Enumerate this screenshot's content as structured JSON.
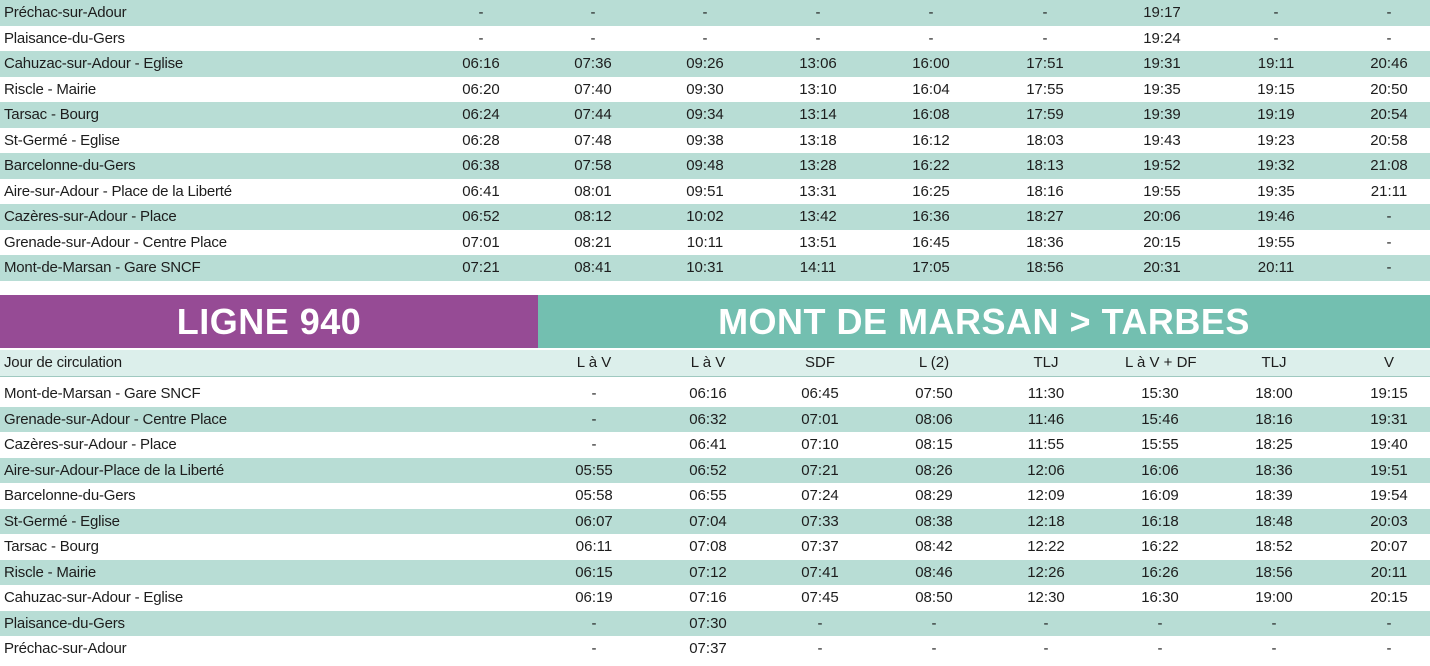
{
  "top_table": {
    "rows": [
      {
        "stop": "Préchac-sur-Adour",
        "times": [
          "-",
          "-",
          "-",
          "-",
          "-",
          "-",
          "19:17",
          "-",
          "-"
        ]
      },
      {
        "stop": "Plaisance-du-Gers",
        "times": [
          "-",
          "-",
          "-",
          "-",
          "-",
          "-",
          "19:24",
          "-",
          "-"
        ]
      },
      {
        "stop": "Cahuzac-sur-Adour - Eglise",
        "times": [
          "06:16",
          "07:36",
          "09:26",
          "13:06",
          "16:00",
          "17:51",
          "19:31",
          "19:11",
          "20:46"
        ]
      },
      {
        "stop": "Riscle - Mairie",
        "times": [
          "06:20",
          "07:40",
          "09:30",
          "13:10",
          "16:04",
          "17:55",
          "19:35",
          "19:15",
          "20:50"
        ]
      },
      {
        "stop": "Tarsac - Bourg",
        "times": [
          "06:24",
          "07:44",
          "09:34",
          "13:14",
          "16:08",
          "17:59",
          "19:39",
          "19:19",
          "20:54"
        ]
      },
      {
        "stop": "St-Germé - Eglise",
        "times": [
          "06:28",
          "07:48",
          "09:38",
          "13:18",
          "16:12",
          "18:03",
          "19:43",
          "19:23",
          "20:58"
        ]
      },
      {
        "stop": "Barcelonne-du-Gers",
        "times": [
          "06:38",
          "07:58",
          "09:48",
          "13:28",
          "16:22",
          "18:13",
          "19:52",
          "19:32",
          "21:08"
        ]
      },
      {
        "stop": "Aire-sur-Adour - Place de la Liberté",
        "times": [
          "06:41",
          "08:01",
          "09:51",
          "13:31",
          "16:25",
          "18:16",
          "19:55",
          "19:35",
          "21:11"
        ]
      },
      {
        "stop": "Cazères-sur-Adour - Place",
        "times": [
          "06:52",
          "08:12",
          "10:02",
          "13:42",
          "16:36",
          "18:27",
          "20:06",
          "19:46",
          "-"
        ]
      },
      {
        "stop": "Grenade-sur-Adour - Centre Place",
        "times": [
          "07:01",
          "08:21",
          "10:11",
          "13:51",
          "16:45",
          "18:36",
          "20:15",
          "19:55",
          "-"
        ]
      },
      {
        "stop": "Mont-de-Marsan - Gare SNCF",
        "times": [
          "07:21",
          "08:41",
          "10:31",
          "14:11",
          "17:05",
          "18:56",
          "20:31",
          "20:11",
          "-"
        ]
      }
    ]
  },
  "banner": {
    "line": "LIGNE 940",
    "route": "MONT DE MARSAN > TARBES"
  },
  "bottom_table": {
    "header_label": "Jour de circulation",
    "days": [
      "L à V",
      "L à V",
      "SDF",
      "L (2)",
      "TLJ",
      "L à V + DF",
      "TLJ",
      "V"
    ],
    "rows": [
      {
        "stop": "Mont-de-Marsan - Gare SNCF",
        "times": [
          "-",
          "06:16",
          "06:45",
          "07:50",
          "11:30",
          "15:30",
          "18:00",
          "19:15"
        ]
      },
      {
        "stop": "Grenade-sur-Adour - Centre Place",
        "times": [
          "-",
          "06:32",
          "07:01",
          "08:06",
          "11:46",
          "15:46",
          "18:16",
          "19:31"
        ]
      },
      {
        "stop": "Cazères-sur-Adour - Place",
        "times": [
          "-",
          "06:41",
          "07:10",
          "08:15",
          "11:55",
          "15:55",
          "18:25",
          "19:40"
        ]
      },
      {
        "stop": "Aire-sur-Adour-Place de la Liberté",
        "times": [
          "05:55",
          "06:52",
          "07:21",
          "08:26",
          "12:06",
          "16:06",
          "18:36",
          "19:51"
        ]
      },
      {
        "stop": "Barcelonne-du-Gers",
        "times": [
          "05:58",
          "06:55",
          "07:24",
          "08:29",
          "12:09",
          "16:09",
          "18:39",
          "19:54"
        ]
      },
      {
        "stop": "St-Germé - Eglise",
        "times": [
          "06:07",
          "07:04",
          "07:33",
          "08:38",
          "12:18",
          "16:18",
          "18:48",
          "20:03"
        ]
      },
      {
        "stop": "Tarsac - Bourg",
        "times": [
          "06:11",
          "07:08",
          "07:37",
          "08:42",
          "12:22",
          "16:22",
          "18:52",
          "20:07"
        ]
      },
      {
        "stop": "Riscle - Mairie",
        "times": [
          "06:15",
          "07:12",
          "07:41",
          "08:46",
          "12:26",
          "16:26",
          "18:56",
          "20:11"
        ]
      },
      {
        "stop": "Cahuzac-sur-Adour - Eglise",
        "times": [
          "06:19",
          "07:16",
          "07:45",
          "08:50",
          "12:30",
          "16:30",
          "19:00",
          "20:15"
        ]
      },
      {
        "stop": "Plaisance-du-Gers",
        "times": [
          "-",
          "07:30",
          "-",
          "-",
          "-",
          "-",
          "-",
          "-"
        ]
      },
      {
        "stop": "Préchac-sur-Adour",
        "times": [
          "-",
          "07:37",
          "-",
          "-",
          "-",
          "-",
          "-",
          "-"
        ]
      }
    ]
  },
  "colors": {
    "row_alt": "#b8ddd5",
    "header_row": "#dcefeb",
    "line_banner": "#964b95",
    "route_banner": "#73bfb0"
  }
}
